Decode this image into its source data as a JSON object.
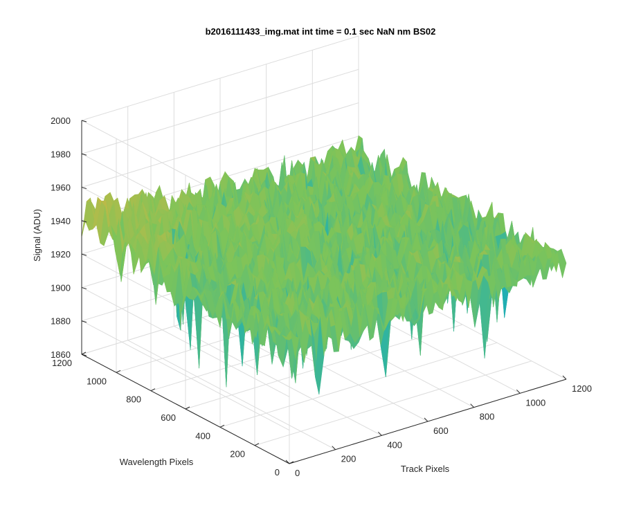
{
  "chart_data": {
    "type": "surface",
    "title": "b2016111433_img.mat int time = 0.1 sec  NaN nm BS02",
    "xlabel": "Track Pixels",
    "ylabel": "Wavelength Pixels",
    "zlabel": "Signal (ADU)",
    "xlim": [
      0,
      1200
    ],
    "ylim": [
      0,
      1200
    ],
    "zlim": [
      1860,
      2000
    ],
    "x_ticks": [
      0,
      200,
      400,
      600,
      800,
      1000,
      1200
    ],
    "y_ticks": [
      0,
      200,
      400,
      600,
      800,
      1000,
      1200
    ],
    "z_ticks": [
      1860,
      1880,
      1900,
      1920,
      1940,
      1960,
      1980,
      2000
    ],
    "grid": true,
    "surface": {
      "mean_signal": 1930,
      "min_signal": 1862,
      "max_signal": 1990,
      "colormap": [
        "#2e8fd3",
        "#1fb0b0",
        "#7cc45a",
        "#d6b640"
      ]
    }
  }
}
